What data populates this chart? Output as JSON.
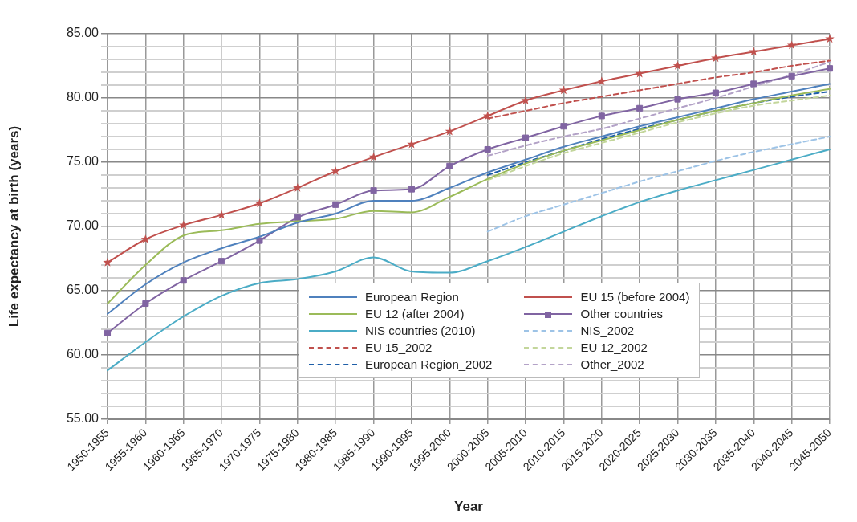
{
  "chart_data": {
    "type": "line",
    "xlabel": "Year",
    "ylabel": "Life expectancy at birth (years)",
    "categories": [
      "1950-1955",
      "1955-1960",
      "1960-1965",
      "1965-1970",
      "1970-1975",
      "1975-1980",
      "1980-1985",
      "1985-1990",
      "1990-1995",
      "1995-2000",
      "2000-2005",
      "2005-2010",
      "2010-2015",
      "2015-2020",
      "2020-2025",
      "2025-2030",
      "2030-2035",
      "2035-2040",
      "2040-2045",
      "2045-2050"
    ],
    "ylim": [
      55,
      85
    ],
    "yticks": [
      {
        "value": 55,
        "label": "55.00"
      },
      {
        "value": 56,
        "label": null
      },
      {
        "value": 57,
        "label": null
      },
      {
        "value": 58,
        "label": null
      },
      {
        "value": 59,
        "label": null
      },
      {
        "value": 60,
        "label": "60.00"
      },
      {
        "value": 61,
        "label": null
      },
      {
        "value": 62,
        "label": null
      },
      {
        "value": 63,
        "label": null
      },
      {
        "value": 64,
        "label": null
      },
      {
        "value": 65,
        "label": "65.00"
      },
      {
        "value": 66,
        "label": null
      },
      {
        "value": 67,
        "label": null
      },
      {
        "value": 68,
        "label": null
      },
      {
        "value": 69,
        "label": null
      },
      {
        "value": 70,
        "label": "70.00"
      },
      {
        "value": 71,
        "label": null
      },
      {
        "value": 72,
        "label": null
      },
      {
        "value": 73,
        "label": null
      },
      {
        "value": 74,
        "label": null
      },
      {
        "value": 75,
        "label": "75.00"
      },
      {
        "value": 76,
        "label": null
      },
      {
        "value": 77,
        "label": null
      },
      {
        "value": 78,
        "label": null
      },
      {
        "value": 79,
        "label": null
      },
      {
        "value": 80,
        "label": "80.00"
      },
      {
        "value": 81,
        "label": null
      },
      {
        "value": 82,
        "label": null
      },
      {
        "value": 83,
        "label": null
      },
      {
        "value": 84,
        "label": null
      },
      {
        "value": 85,
        "label": "85.00"
      }
    ],
    "grid": true,
    "legend": "bottom right",
    "series": [
      {
        "name": "European Region",
        "color": "#4f81bd",
        "values": [
          63.2,
          65.5,
          67.2,
          68.3,
          69.2,
          70.3,
          71.0,
          72.0,
          72.0,
          73.0,
          74.2,
          75.2,
          76.2,
          77.0,
          77.8,
          78.5,
          79.2,
          79.9,
          80.5,
          81.1
        ]
      },
      {
        "name": "EU 15 (before 2004)",
        "color": "#c0504d",
        "marker": "star",
        "values": [
          67.2,
          69.0,
          70.1,
          70.9,
          71.8,
          73.0,
          74.3,
          75.4,
          76.4,
          77.4,
          78.6,
          79.8,
          80.6,
          81.3,
          81.9,
          82.5,
          83.1,
          83.6,
          84.1,
          84.6
        ]
      },
      {
        "name": "EU 12 (after 2004)",
        "color": "#9bbb59",
        "values": [
          64.0,
          67.0,
          69.3,
          69.7,
          70.2,
          70.4,
          70.6,
          71.2,
          71.1,
          72.3,
          73.7,
          74.9,
          75.9,
          76.7,
          77.5,
          78.3,
          79.0,
          79.6,
          80.2,
          80.7
        ]
      },
      {
        "name": "Other countries",
        "color": "#8064a2",
        "marker": "square",
        "values": [
          61.7,
          64.0,
          65.8,
          67.3,
          68.9,
          70.7,
          71.7,
          72.8,
          72.9,
          74.7,
          76.0,
          76.9,
          77.8,
          78.6,
          79.2,
          79.9,
          80.4,
          81.1,
          81.7,
          82.3
        ]
      },
      {
        "name": "NIS countries (2010)",
        "color": "#4bacc6",
        "values": [
          58.8,
          61.0,
          63.0,
          64.6,
          65.6,
          65.9,
          66.5,
          67.6,
          66.5,
          66.4,
          67.3,
          68.4,
          69.6,
          70.8,
          71.9,
          72.8,
          73.6,
          74.4,
          75.2,
          76.0
        ]
      },
      {
        "name": "NIS_2002",
        "color": "#9dc3e6",
        "line_style": "dashed",
        "values": [
          null,
          null,
          null,
          null,
          null,
          null,
          null,
          null,
          null,
          null,
          69.6,
          70.8,
          71.7,
          72.6,
          73.5,
          74.3,
          75.1,
          75.8,
          76.4,
          77.0
        ]
      },
      {
        "name": "EU 15_2002",
        "color": "#c0504d",
        "line_style": "dashed",
        "values": [
          null,
          null,
          null,
          null,
          null,
          null,
          null,
          null,
          null,
          null,
          78.4,
          79.0,
          79.6,
          80.1,
          80.6,
          81.1,
          81.6,
          82.0,
          82.5,
          82.9
        ]
      },
      {
        "name": "EU 12_2002",
        "color": "#c3d69b",
        "line_style": "dashed",
        "values": [
          null,
          null,
          null,
          null,
          null,
          null,
          null,
          null,
          null,
          null,
          73.6,
          74.7,
          75.7,
          76.5,
          77.3,
          78.1,
          78.8,
          79.4,
          79.8,
          80.2
        ]
      },
      {
        "name": "European Region_2002",
        "color": "#1f5fa8",
        "line_style": "dashed",
        "values": [
          null,
          null,
          null,
          null,
          null,
          null,
          null,
          null,
          null,
          null,
          74.0,
          75.0,
          75.9,
          76.8,
          77.6,
          78.3,
          79.0,
          79.6,
          80.1,
          80.5
        ]
      },
      {
        "name": "Other_2002",
        "color": "#b3a2c7",
        "line_style": "dashed",
        "values": [
          null,
          null,
          null,
          null,
          null,
          null,
          null,
          null,
          null,
          null,
          75.5,
          76.3,
          77.0,
          77.6,
          78.4,
          79.2,
          80.0,
          80.9,
          81.8,
          82.8
        ]
      }
    ]
  }
}
